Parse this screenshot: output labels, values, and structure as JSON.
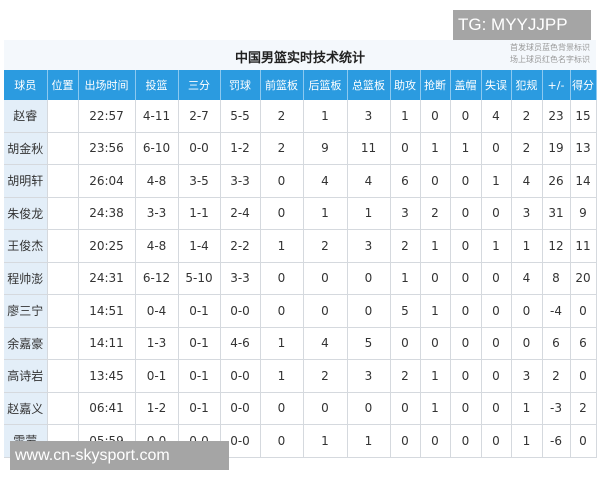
{
  "watermarks": {
    "top": "TG: MYYJJPP",
    "bottom": "www.cn-skysport.com"
  },
  "title": "中国男篮实时技术统计",
  "legend": [
    "首发球员蓝色背景标识",
    "场上球员红色名字标识"
  ],
  "headers": [
    "球员",
    "位置",
    "出场时间",
    "投篮",
    "三分",
    "罚球",
    "前篮板",
    "后篮板",
    "总篮板",
    "助攻",
    "抢断",
    "盖帽",
    "失误",
    "犯规",
    "+/-",
    "得分"
  ],
  "rows": [
    [
      "赵睿",
      "",
      "22:57",
      "4-11",
      "2-7",
      "5-5",
      "2",
      "1",
      "3",
      "1",
      "0",
      "0",
      "4",
      "2",
      "23",
      "15"
    ],
    [
      "胡金秋",
      "",
      "23:56",
      "6-10",
      "0-0",
      "1-2",
      "2",
      "9",
      "11",
      "0",
      "1",
      "1",
      "0",
      "2",
      "19",
      "13"
    ],
    [
      "胡明轩",
      "",
      "26:04",
      "4-8",
      "3-5",
      "3-3",
      "0",
      "4",
      "4",
      "6",
      "0",
      "0",
      "1",
      "4",
      "26",
      "14"
    ],
    [
      "朱俊龙",
      "",
      "24:38",
      "3-3",
      "1-1",
      "2-4",
      "0",
      "1",
      "1",
      "3",
      "2",
      "0",
      "0",
      "3",
      "31",
      "9"
    ],
    [
      "王俊杰",
      "",
      "20:25",
      "4-8",
      "1-4",
      "2-2",
      "1",
      "2",
      "3",
      "2",
      "1",
      "0",
      "1",
      "1",
      "12",
      "11"
    ],
    [
      "程帅澎",
      "",
      "24:31",
      "6-12",
      "5-10",
      "3-3",
      "0",
      "0",
      "0",
      "1",
      "0",
      "0",
      "0",
      "4",
      "8",
      "20"
    ],
    [
      "廖三宁",
      "",
      "14:51",
      "0-4",
      "0-1",
      "0-0",
      "0",
      "0",
      "0",
      "5",
      "1",
      "0",
      "0",
      "0",
      "-4",
      "0"
    ],
    [
      "余嘉豪",
      "",
      "14:11",
      "1-3",
      "0-1",
      "4-6",
      "1",
      "4",
      "5",
      "0",
      "0",
      "0",
      "0",
      "0",
      "6",
      "6"
    ],
    [
      "高诗岩",
      "",
      "13:45",
      "0-1",
      "0-1",
      "0-0",
      "1",
      "2",
      "3",
      "2",
      "1",
      "0",
      "0",
      "3",
      "2",
      "0"
    ],
    [
      "赵嘉义",
      "",
      "06:41",
      "1-2",
      "0-1",
      "0-0",
      "0",
      "0",
      "0",
      "0",
      "1",
      "0",
      "0",
      "1",
      "-3",
      "2"
    ],
    [
      "雷蒙",
      "",
      "05:59",
      "0-0",
      "0-0",
      "0-0",
      "0",
      "1",
      "1",
      "0",
      "0",
      "0",
      "0",
      "1",
      "-6",
      "0"
    ]
  ],
  "colors": {
    "header": "#2b9be0",
    "name_column": "#e3eef8"
  }
}
